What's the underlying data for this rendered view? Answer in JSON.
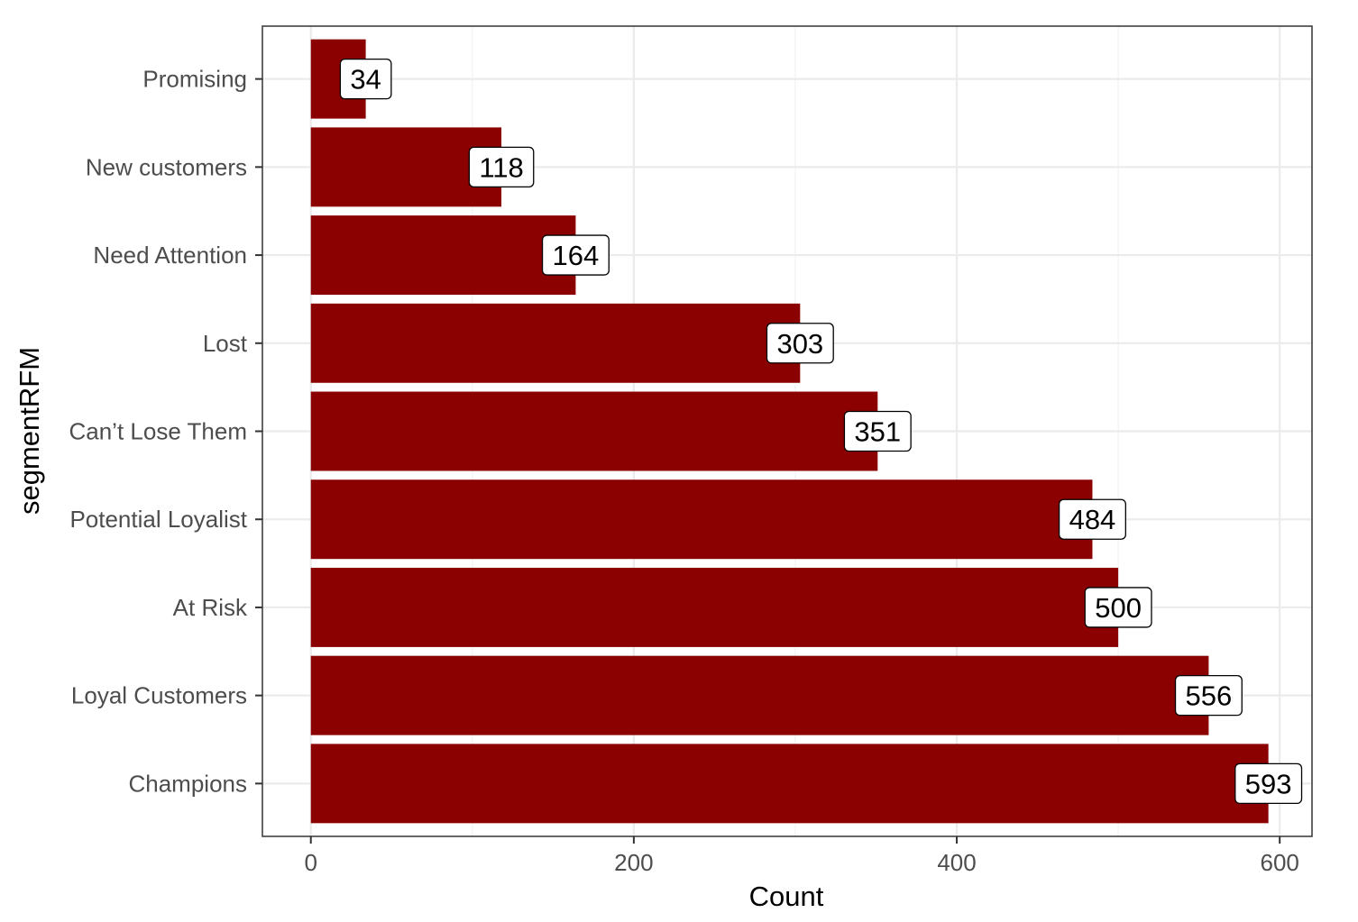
{
  "chart_data": {
    "type": "bar",
    "orientation": "horizontal",
    "title": "",
    "xlabel": "Count",
    "ylabel": "segmentRFM",
    "xlim": [
      -30,
      620
    ],
    "x_ticks": [
      0,
      200,
      400,
      600
    ],
    "categories": [
      "Promising",
      "New customers",
      "Need Attention",
      "Lost",
      "Can’t Lose Them",
      "Potential Loyalist",
      "At Risk",
      "Loyal Customers",
      "Champions"
    ],
    "values": [
      34,
      118,
      164,
      303,
      351,
      484,
      500,
      556,
      593
    ],
    "bar_color": "#8b0000",
    "grid": true,
    "legend": "none",
    "data_labels": true
  }
}
